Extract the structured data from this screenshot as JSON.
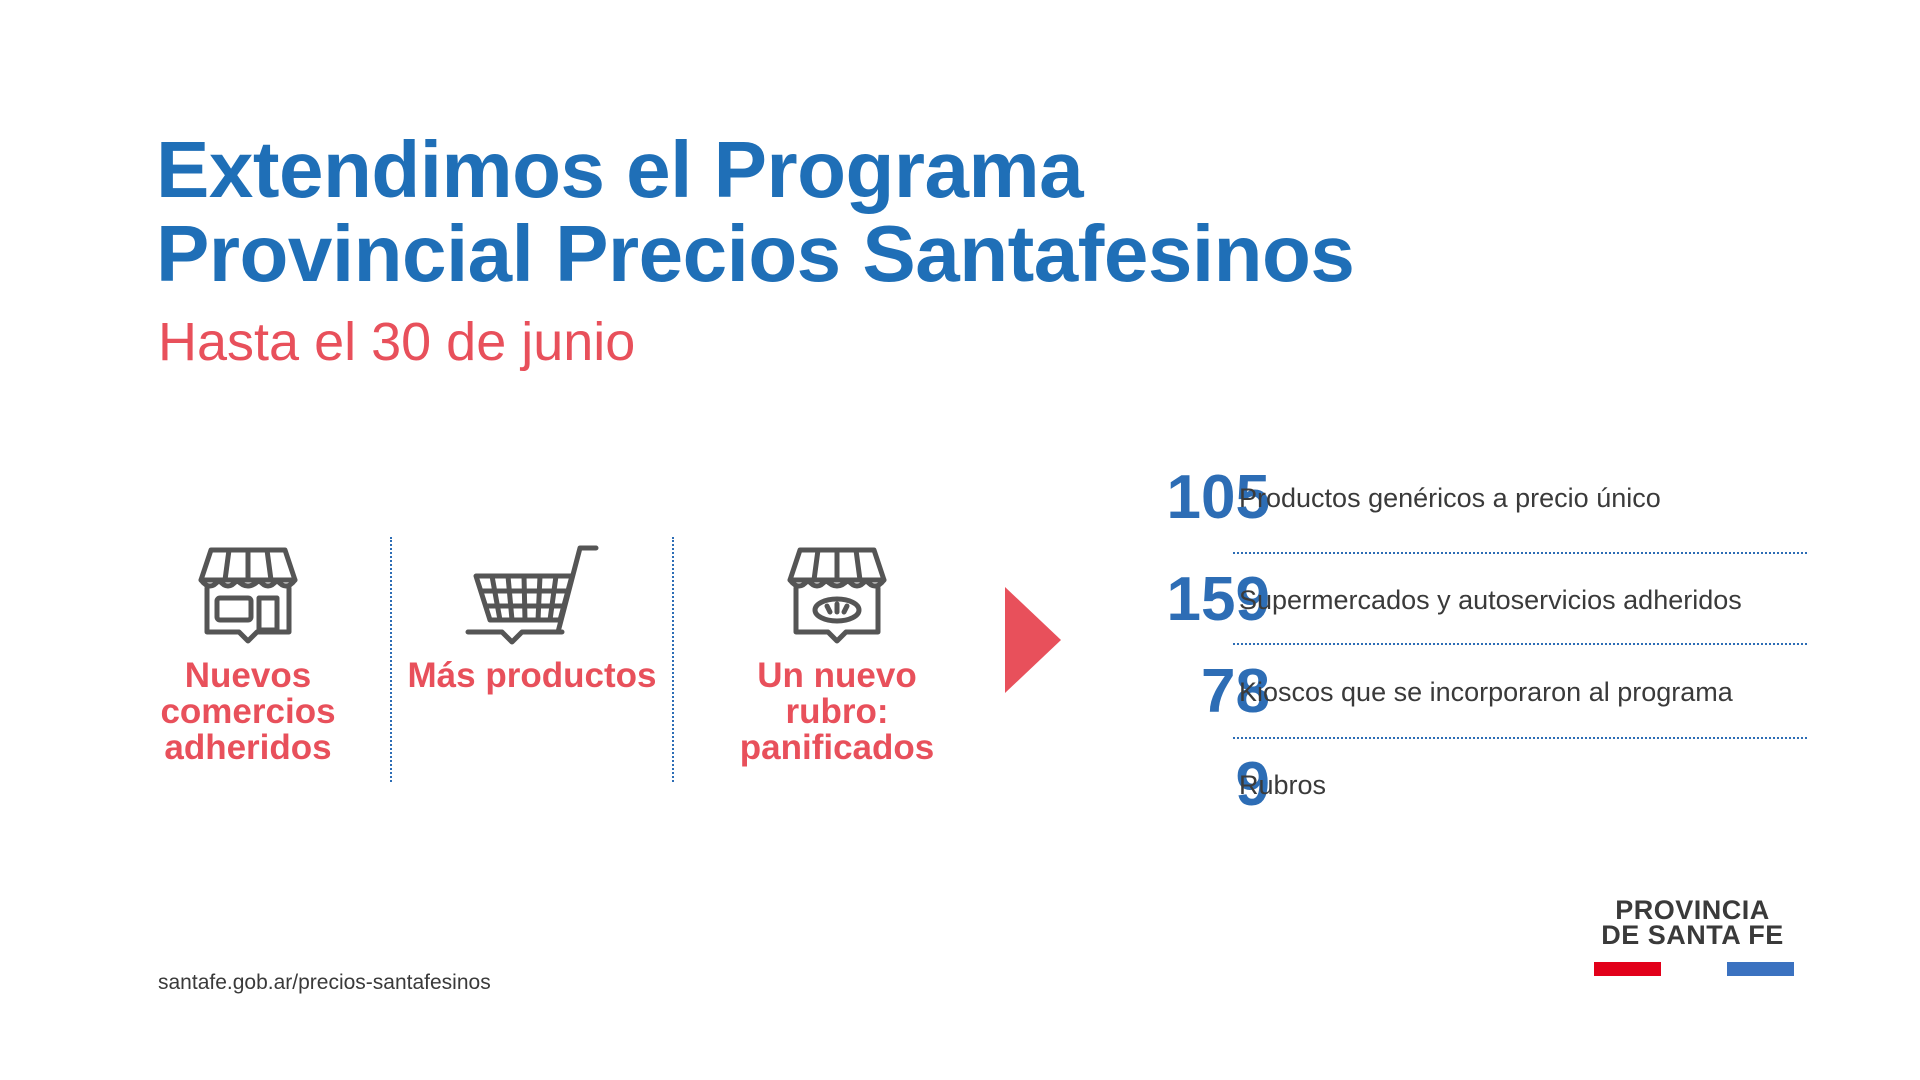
{
  "title": {
    "line1": "Extendimos el Programa",
    "line2": "Provincial Precios Santafesinos"
  },
  "subtitle": "Hasta el 30 de junio",
  "features": [
    {
      "icon": "storefront-icon",
      "label": "Nuevos comercios adheridos"
    },
    {
      "icon": "shopping-cart-icon",
      "label": "Más productos"
    },
    {
      "icon": "bakery-store-icon",
      "label": "Un nuevo rubro: panificados"
    }
  ],
  "stats": [
    {
      "value": "105",
      "label": "Productos genéricos a precio único"
    },
    {
      "value": "159",
      "label": "Supermercados y autoservicios adheridos"
    },
    {
      "value": "78",
      "label": "Kioscos que se incorporaron al programa"
    },
    {
      "value": "9",
      "label": "Rubros"
    }
  ],
  "url": "santafe.gob.ar/precios-santafesinos",
  "logo": {
    "line1": "PROVINCIA",
    "line2": "DE SANTA FE"
  },
  "colors": {
    "title_blue": "#1f6fb7",
    "accent_red": "#e8505b",
    "stat_blue": "#2d6db5",
    "logo_red": "#e2001a",
    "logo_blue": "#3b72c0"
  }
}
